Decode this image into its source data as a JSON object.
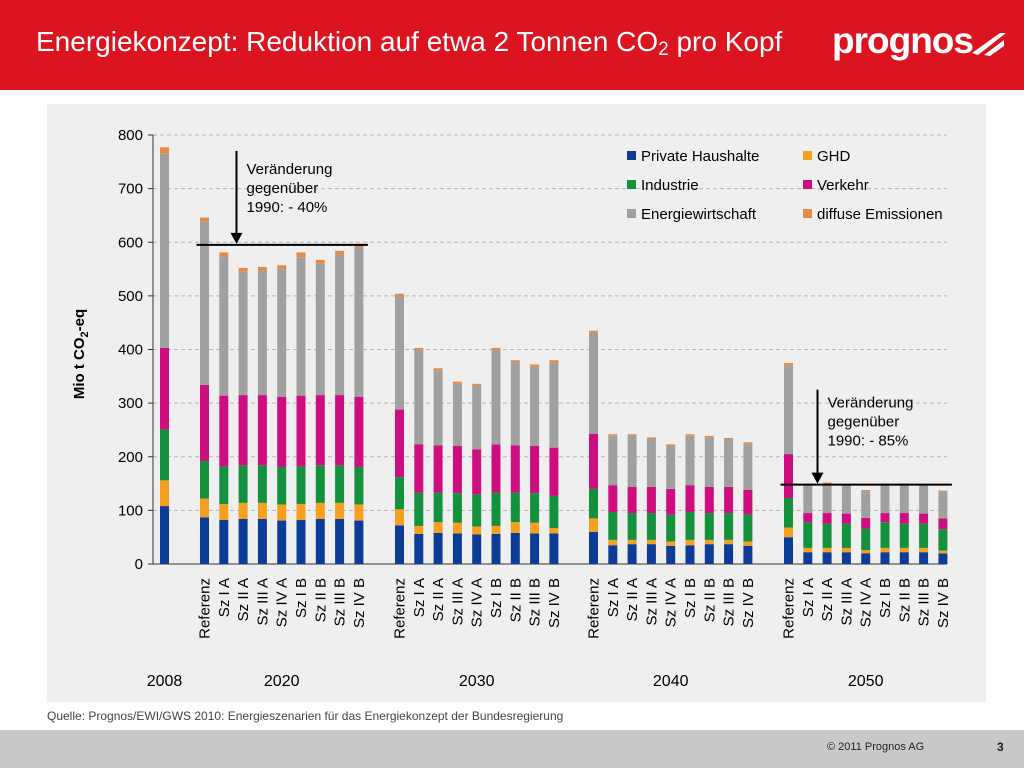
{
  "header": {
    "title_main": "Energiekonzept: Reduktion auf etwa 2 Tonnen CO",
    "title_sub": "2",
    "title_end": " pro Kopf",
    "logo_text": "prognos"
  },
  "footer": {
    "source": "Quelle: Prognos/EWI/GWS 2010: Energieszenarien für das Energiekonzept der Bundesregierung",
    "copyright": "© 2011 Prognos AG",
    "page_number": "3"
  },
  "colors": {
    "header_red": "#dc1420",
    "Private Haushalte": "#0d3c96",
    "GHD": "#f5a01e",
    "Industrie": "#13913c",
    "Verkehr": "#cd0e7f",
    "Energiewirtschaft": "#a0a0a0",
    "diffuse Emissionen": "#e78a46"
  },
  "chart_data": {
    "type": "bar",
    "stacked": true,
    "ylabel_main": "Mio t CO",
    "ylabel_sub": "2",
    "ylabel_end": "-eq",
    "ylim": [
      0,
      800
    ],
    "yticks": [
      0,
      100,
      200,
      300,
      400,
      500,
      600,
      700,
      800
    ],
    "grid": "dashed horizontal",
    "legend_position": "top-right",
    "series_order": [
      "Private Haushalte",
      "GHD",
      "Industrie",
      "Verkehr",
      "Energiewirtschaft",
      "diffuse Emissionen"
    ],
    "groups": [
      {
        "year": "2008",
        "bars": [
          {
            "label": "",
            "values": [
              108,
              48,
              95,
              152,
              362,
              12
            ]
          }
        ]
      },
      {
        "year": "2020",
        "bars": [
          {
            "label": "Referenz",
            "values": [
              87,
              35,
              70,
              142,
              305,
              7
            ]
          },
          {
            "label": "Sz I A",
            "values": [
              82,
              30,
              70,
              132,
              260,
              7
            ]
          },
          {
            "label": "Sz II A",
            "values": [
              84,
              30,
              70,
              131,
              230,
              7
            ]
          },
          {
            "label": "Sz III A",
            "values": [
              84,
              30,
              70,
              131,
              232,
              7
            ]
          },
          {
            "label": "Sz IV A",
            "values": [
              81,
              30,
              70,
              131,
              238,
              7
            ]
          },
          {
            "label": "Sz I B",
            "values": [
              82,
              30,
              70,
              132,
              258,
              9
            ]
          },
          {
            "label": "Sz II B",
            "values": [
              84,
              30,
              70,
              131,
              245,
              7
            ]
          },
          {
            "label": "Sz III B",
            "values": [
              84,
              30,
              70,
              131,
              262,
              7
            ]
          },
          {
            "label": "Sz IV B",
            "values": [
              81,
              30,
              70,
              131,
              278,
              7
            ]
          }
        ]
      },
      {
        "year": "2030",
        "bars": [
          {
            "label": "Referenz",
            "values": [
              72,
              30,
              60,
              126,
              212,
              4
            ]
          },
          {
            "label": "Sz I A",
            "values": [
              56,
              15,
              62,
              90,
              176,
              4
            ]
          },
          {
            "label": "Sz II A",
            "values": [
              58,
              20,
              55,
              88,
              140,
              4
            ]
          },
          {
            "label": "Sz III A",
            "values": [
              57,
              20,
              55,
              88,
              116,
              4
            ]
          },
          {
            "label": "Sz IV A",
            "values": [
              55,
              15,
              60,
              84,
              118,
              4
            ]
          },
          {
            "label": "Sz I B",
            "values": [
              56,
              15,
              62,
              90,
              176,
              4
            ]
          },
          {
            "label": "Sz II B",
            "values": [
              58,
              20,
              55,
              88,
              155,
              4
            ]
          },
          {
            "label": "Sz III B",
            "values": [
              57,
              20,
              55,
              88,
              148,
              4
            ]
          },
          {
            "label": "Sz IV B",
            "values": [
              57,
              10,
              60,
              90,
              158,
              5
            ]
          }
        ]
      },
      {
        "year": "2040",
        "bars": [
          {
            "label": "Referenz",
            "values": [
              60,
              25,
              55,
              103,
              188,
              4
            ]
          },
          {
            "label": "Sz I A",
            "values": [
              35,
              10,
              52,
              50,
              92,
              3
            ]
          },
          {
            "label": "Sz II A",
            "values": [
              37,
              8,
              50,
              49,
              95,
              3
            ]
          },
          {
            "label": "Sz III A",
            "values": [
              37,
              8,
              50,
              49,
              89,
              3
            ]
          },
          {
            "label": "Sz IV A",
            "values": [
              34,
              8,
              50,
              48,
              80,
              3
            ]
          },
          {
            "label": "Sz I B",
            "values": [
              35,
              10,
              52,
              50,
              92,
              3
            ]
          },
          {
            "label": "Sz II B",
            "values": [
              37,
              8,
              50,
              49,
              92,
              3
            ]
          },
          {
            "label": "Sz III B",
            "values": [
              37,
              8,
              50,
              49,
              88,
              3
            ]
          },
          {
            "label": "Sz IV B",
            "values": [
              34,
              8,
              50,
              46,
              86,
              3
            ]
          }
        ]
      },
      {
        "year": "2050",
        "bars": [
          {
            "label": "Referenz",
            "values": [
              50,
              18,
              55,
              82,
              165,
              5
            ]
          },
          {
            "label": "Sz I A",
            "values": [
              22,
              8,
              48,
              17,
              53,
              2
            ]
          },
          {
            "label": "Sz II A",
            "values": [
              22,
              8,
              45,
              20,
              55,
              2
            ]
          },
          {
            "label": "Sz III A",
            "values": [
              22,
              8,
              45,
              19,
              53,
              2
            ]
          },
          {
            "label": "Sz IV A",
            "values": [
              20,
              6,
              40,
              20,
              50,
              2
            ]
          },
          {
            "label": "Sz I B",
            "values": [
              22,
              8,
              48,
              17,
              53,
              2
            ]
          },
          {
            "label": "Sz II B",
            "values": [
              22,
              8,
              45,
              20,
              53,
              2
            ]
          },
          {
            "label": "Sz III B",
            "values": [
              22,
              8,
              45,
              19,
              53,
              2
            ]
          },
          {
            "label": "Sz IV B",
            "values": [
              20,
              5,
              40,
              20,
              50,
              2
            ]
          }
        ]
      }
    ],
    "annotations": [
      {
        "lines": [
          "Veränderung",
          "gegenüber",
          "1990: - 40%"
        ],
        "group": "2020",
        "value": 595
      },
      {
        "lines": [
          "Veränderung",
          "gegenüber",
          "1990: - 85%"
        ],
        "group": "2050",
        "value": 148
      }
    ]
  }
}
